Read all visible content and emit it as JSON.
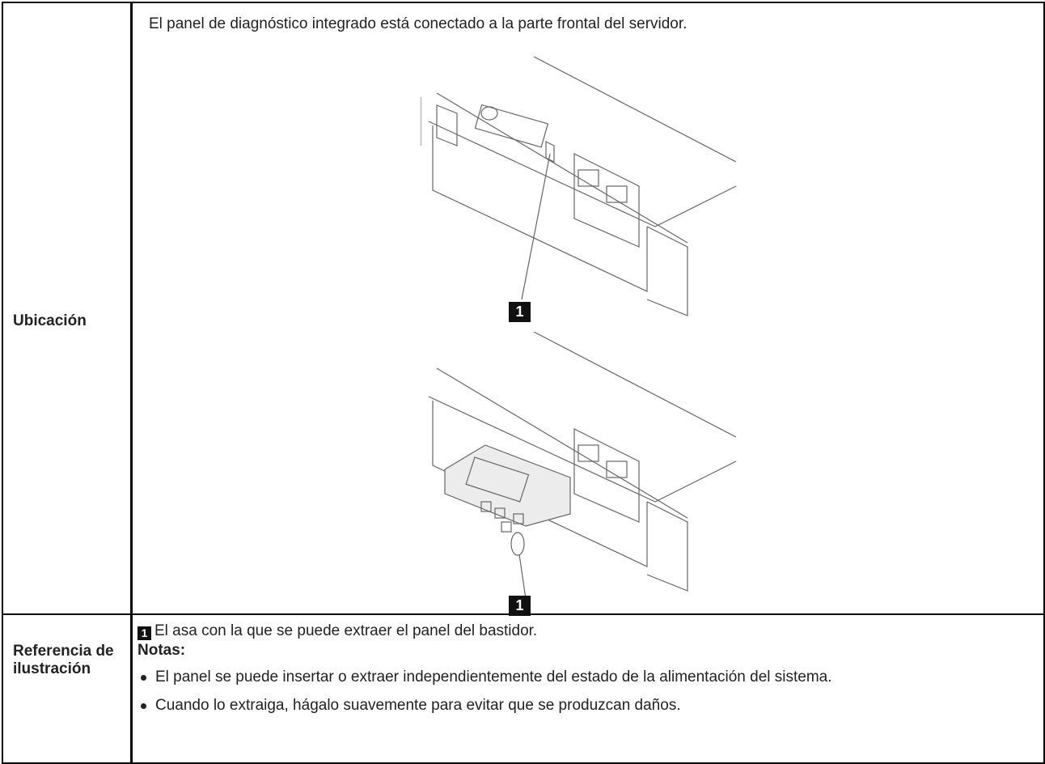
{
  "table": {
    "rows": [
      {
        "header": "Ubicación",
        "text": "El panel de diagnóstico integrado está conectado a la parte frontal del servidor.",
        "callouts": [
          "1",
          "1"
        ]
      },
      {
        "header": "Referencia de ilustración",
        "callout": "1",
        "description": "El asa con la que se puede extraer el panel del bastidor.",
        "notes_title": "Notas:",
        "notes": [
          "El panel se puede insertar o extraer independientemente del estado de la alimentación del sistema.",
          "Cuando lo extraiga, hágalo suavemente para evitar que se produzcan daños."
        ]
      }
    ]
  }
}
